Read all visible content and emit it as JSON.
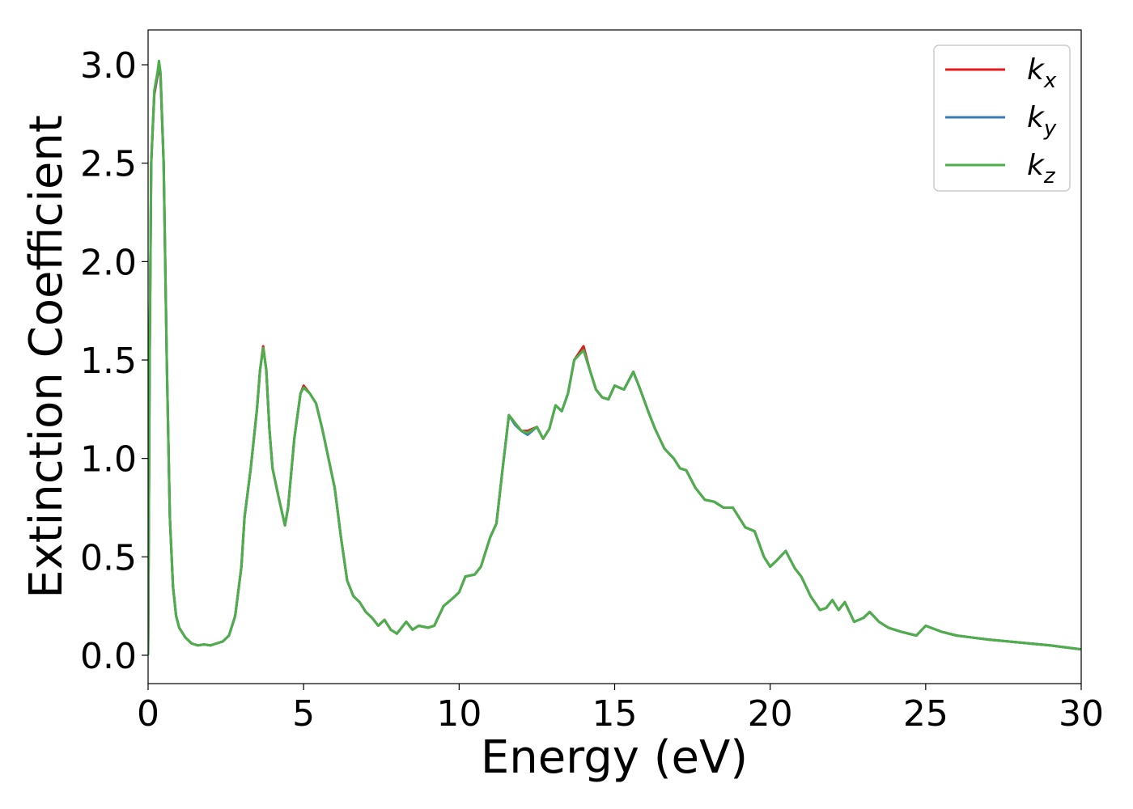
{
  "chart_data": {
    "type": "line",
    "xlabel": "Energy (eV)",
    "ylabel": "Extinction Coefficient",
    "xlim": [
      0,
      30
    ],
    "ylim": [
      -0.144,
      3.177
    ],
    "xticks": [
      0,
      5,
      10,
      15,
      20,
      25,
      30
    ],
    "yticks": [
      {
        "value": 0,
        "label": "0.0"
      },
      0.5,
      {
        "value": 1,
        "label": "1.0"
      },
      1.5,
      {
        "value": 2,
        "label": "2.0"
      },
      2.5,
      {
        "value": 3,
        "label": "3.0"
      }
    ],
    "legend": "upper right",
    "x": [
      0,
      0.05,
      0.1,
      0.2,
      0.3,
      0.35,
      0.4,
      0.5,
      0.6,
      0.7,
      0.8,
      0.9,
      1.0,
      1.2,
      1.4,
      1.6,
      1.8,
      2.0,
      2.2,
      2.4,
      2.6,
      2.8,
      3.0,
      3.1,
      3.3,
      3.5,
      3.6,
      3.7,
      3.8,
      3.9,
      4.0,
      4.2,
      4.4,
      4.5,
      4.7,
      4.9,
      5.0,
      5.2,
      5.4,
      5.6,
      5.8,
      6.0,
      6.2,
      6.4,
      6.6,
      6.8,
      7.0,
      7.2,
      7.4,
      7.6,
      7.8,
      8.0,
      8.2,
      8.3,
      8.5,
      8.7,
      9.0,
      9.2,
      9.5,
      9.8,
      10.0,
      10.2,
      10.5,
      10.7,
      11.0,
      11.2,
      11.4,
      11.6,
      11.8,
      12.0,
      12.2,
      12.5,
      12.7,
      12.9,
      13.1,
      13.3,
      13.5,
      13.7,
      14.0,
      14.2,
      14.4,
      14.6,
      14.8,
      15.0,
      15.3,
      15.6,
      15.8,
      16.1,
      16.3,
      16.6,
      16.9,
      17.1,
      17.3,
      17.6,
      17.9,
      18.2,
      18.5,
      18.8,
      19.2,
      19.5,
      19.8,
      20.0,
      20.2,
      20.5,
      20.8,
      21.0,
      21.3,
      21.6,
      21.8,
      22.0,
      22.2,
      22.4,
      22.7,
      23.0,
      23.2,
      23.5,
      23.8,
      24.2,
      24.7,
      25.0,
      25.5,
      26.0,
      26.5,
      27.0,
      28.0,
      29.0,
      29.5,
      30.0
    ],
    "series": [
      {
        "name": "kx",
        "color": "#e41a1c",
        "values": [
          0,
          1.5,
          2.5,
          2.85,
          2.94,
          3.0,
          2.94,
          2.5,
          1.5,
          0.7,
          0.35,
          0.2,
          0.14,
          0.09,
          0.06,
          0.05,
          0.055,
          0.05,
          0.06,
          0.07,
          0.1,
          0.2,
          0.45,
          0.7,
          0.95,
          1.25,
          1.45,
          1.57,
          1.45,
          1.15,
          0.95,
          0.8,
          0.66,
          0.75,
          1.1,
          1.33,
          1.37,
          1.33,
          1.28,
          1.15,
          1.0,
          0.85,
          0.6,
          0.38,
          0.3,
          0.27,
          0.22,
          0.19,
          0.15,
          0.18,
          0.13,
          0.11,
          0.15,
          0.17,
          0.13,
          0.15,
          0.14,
          0.15,
          0.25,
          0.29,
          0.32,
          0.4,
          0.41,
          0.45,
          0.6,
          0.67,
          0.95,
          1.22,
          1.18,
          1.14,
          1.14,
          1.16,
          1.1,
          1.15,
          1.27,
          1.24,
          1.33,
          1.5,
          1.57,
          1.45,
          1.35,
          1.31,
          1.3,
          1.37,
          1.35,
          1.44,
          1.36,
          1.23,
          1.15,
          1.05,
          1.0,
          0.95,
          0.94,
          0.85,
          0.79,
          0.78,
          0.75,
          0.75,
          0.65,
          0.63,
          0.5,
          0.45,
          0.48,
          0.53,
          0.44,
          0.4,
          0.3,
          0.23,
          0.24,
          0.28,
          0.23,
          0.27,
          0.17,
          0.19,
          0.22,
          0.17,
          0.14,
          0.12,
          0.1,
          0.15,
          0.12,
          0.1,
          0.09,
          0.08,
          0.065,
          0.05,
          0.04,
          0.03
        ]
      },
      {
        "name": "ky",
        "color": "#377eb8",
        "values": [
          0,
          1.5,
          2.5,
          2.86,
          2.95,
          3.01,
          2.95,
          2.5,
          1.5,
          0.7,
          0.35,
          0.2,
          0.14,
          0.09,
          0.06,
          0.05,
          0.055,
          0.05,
          0.06,
          0.07,
          0.1,
          0.2,
          0.45,
          0.7,
          0.95,
          1.25,
          1.45,
          1.56,
          1.45,
          1.15,
          0.95,
          0.8,
          0.66,
          0.75,
          1.1,
          1.33,
          1.36,
          1.33,
          1.28,
          1.15,
          1.0,
          0.85,
          0.6,
          0.38,
          0.3,
          0.27,
          0.22,
          0.19,
          0.15,
          0.18,
          0.13,
          0.11,
          0.15,
          0.17,
          0.13,
          0.15,
          0.14,
          0.15,
          0.25,
          0.29,
          0.32,
          0.4,
          0.41,
          0.45,
          0.6,
          0.67,
          0.95,
          1.22,
          1.17,
          1.14,
          1.12,
          1.16,
          1.1,
          1.15,
          1.27,
          1.24,
          1.33,
          1.5,
          1.55,
          1.45,
          1.35,
          1.31,
          1.3,
          1.37,
          1.35,
          1.44,
          1.36,
          1.23,
          1.15,
          1.05,
          1.0,
          0.95,
          0.94,
          0.85,
          0.79,
          0.78,
          0.75,
          0.75,
          0.65,
          0.63,
          0.5,
          0.45,
          0.48,
          0.53,
          0.44,
          0.4,
          0.3,
          0.23,
          0.24,
          0.28,
          0.23,
          0.27,
          0.17,
          0.19,
          0.22,
          0.17,
          0.14,
          0.12,
          0.1,
          0.15,
          0.12,
          0.1,
          0.09,
          0.08,
          0.065,
          0.05,
          0.04,
          0.03
        ]
      },
      {
        "name": "kz",
        "color": "#4daf4a",
        "values": [
          0,
          1.5,
          2.5,
          2.87,
          2.96,
          3.02,
          2.96,
          2.5,
          1.5,
          0.7,
          0.35,
          0.2,
          0.14,
          0.09,
          0.06,
          0.05,
          0.055,
          0.05,
          0.06,
          0.07,
          0.1,
          0.2,
          0.45,
          0.7,
          0.95,
          1.25,
          1.45,
          1.56,
          1.45,
          1.15,
          0.95,
          0.8,
          0.66,
          0.75,
          1.1,
          1.33,
          1.36,
          1.33,
          1.28,
          1.15,
          1.0,
          0.85,
          0.6,
          0.38,
          0.3,
          0.27,
          0.22,
          0.19,
          0.15,
          0.18,
          0.13,
          0.11,
          0.15,
          0.17,
          0.13,
          0.15,
          0.14,
          0.15,
          0.25,
          0.29,
          0.32,
          0.4,
          0.41,
          0.45,
          0.6,
          0.67,
          0.95,
          1.22,
          1.18,
          1.14,
          1.13,
          1.16,
          1.1,
          1.15,
          1.27,
          1.24,
          1.33,
          1.5,
          1.55,
          1.45,
          1.35,
          1.31,
          1.3,
          1.37,
          1.35,
          1.44,
          1.36,
          1.23,
          1.15,
          1.05,
          1.0,
          0.95,
          0.94,
          0.85,
          0.79,
          0.78,
          0.75,
          0.75,
          0.65,
          0.63,
          0.5,
          0.45,
          0.48,
          0.53,
          0.44,
          0.4,
          0.3,
          0.23,
          0.24,
          0.28,
          0.23,
          0.27,
          0.17,
          0.19,
          0.22,
          0.17,
          0.14,
          0.12,
          0.1,
          0.15,
          0.12,
          0.1,
          0.09,
          0.08,
          0.065,
          0.05,
          0.04,
          0.03
        ]
      }
    ]
  }
}
